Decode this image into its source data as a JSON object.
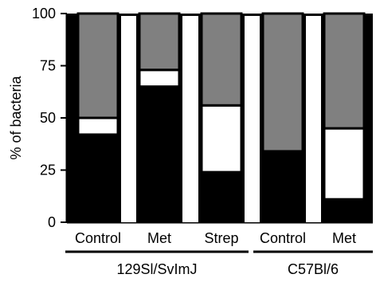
{
  "chart_data": {
    "type": "bar",
    "stacked": true,
    "ylabel": "% of bacteria",
    "ylim": [
      0,
      100
    ],
    "yticks": [
      "0",
      "25",
      "50",
      "75",
      "100"
    ],
    "grid": false,
    "legend": "none",
    "categories": [
      "Control",
      "Met",
      "Strep",
      "Control",
      "Met"
    ],
    "groups": [
      {
        "label": "129Sl/SvImJ",
        "categories": [
          0,
          1,
          2
        ]
      },
      {
        "label": "C57Bl/6",
        "categories": [
          3,
          4
        ]
      }
    ],
    "series": [
      {
        "values": [
          42,
          65,
          24,
          34,
          11
        ],
        "color": "#000000"
      },
      {
        "values": [
          8,
          8,
          32,
          0,
          34
        ],
        "color": "#ffffff"
      },
      {
        "values": [
          50,
          27,
          44,
          66,
          55
        ],
        "color": "#808080"
      }
    ]
  }
}
